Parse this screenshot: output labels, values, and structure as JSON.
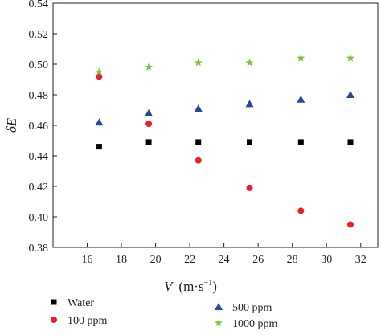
{
  "chart_data": {
    "type": "scatter",
    "title": "",
    "xlabel_symbol": "V",
    "xlabel_unit_base": "(m·s",
    "xlabel_unit_exp": "−1",
    "xlabel_unit_close": ")",
    "ylabel": "δE",
    "xlim": [
      14,
      33
    ],
    "ylim": [
      0.38,
      0.54
    ],
    "xticks": [
      16,
      18,
      20,
      22,
      24,
      26,
      28,
      30,
      32
    ],
    "yticks": [
      0.38,
      0.4,
      0.42,
      0.44,
      0.46,
      0.48,
      0.5,
      0.52,
      0.54
    ],
    "ytick_labels": [
      "0.38",
      "0.40",
      "0.42",
      "0.44",
      "0.46",
      "0.48",
      "0.50",
      "0.52",
      "0.54"
    ],
    "grid": false,
    "legend_position": "bottom",
    "series": [
      {
        "name": "Water",
        "marker": "square",
        "color": "#000000",
        "x": [
          16.7,
          19.6,
          22.5,
          25.5,
          28.5,
          31.4
        ],
        "y": [
          0.446,
          0.449,
          0.449,
          0.449,
          0.449,
          0.449
        ]
      },
      {
        "name": "100 ppm",
        "marker": "circle",
        "color": "#e8202a",
        "x": [
          16.7,
          19.6,
          22.5,
          25.5,
          28.5,
          31.4
        ],
        "y": [
          0.492,
          0.461,
          0.437,
          0.419,
          0.404,
          0.395
        ]
      },
      {
        "name": "500 ppm",
        "marker": "triangle",
        "color": "#27499a",
        "x": [
          16.7,
          19.6,
          22.5,
          25.5,
          28.5,
          31.4
        ],
        "y": [
          0.462,
          0.468,
          0.471,
          0.474,
          0.477,
          0.48
        ]
      },
      {
        "name": "1000 ppm",
        "marker": "star",
        "color": "#7cc242",
        "x": [
          16.7,
          19.6,
          22.5,
          25.5,
          28.5,
          31.4
        ],
        "y": [
          0.495,
          0.498,
          0.501,
          0.501,
          0.504,
          0.504
        ]
      }
    ]
  }
}
